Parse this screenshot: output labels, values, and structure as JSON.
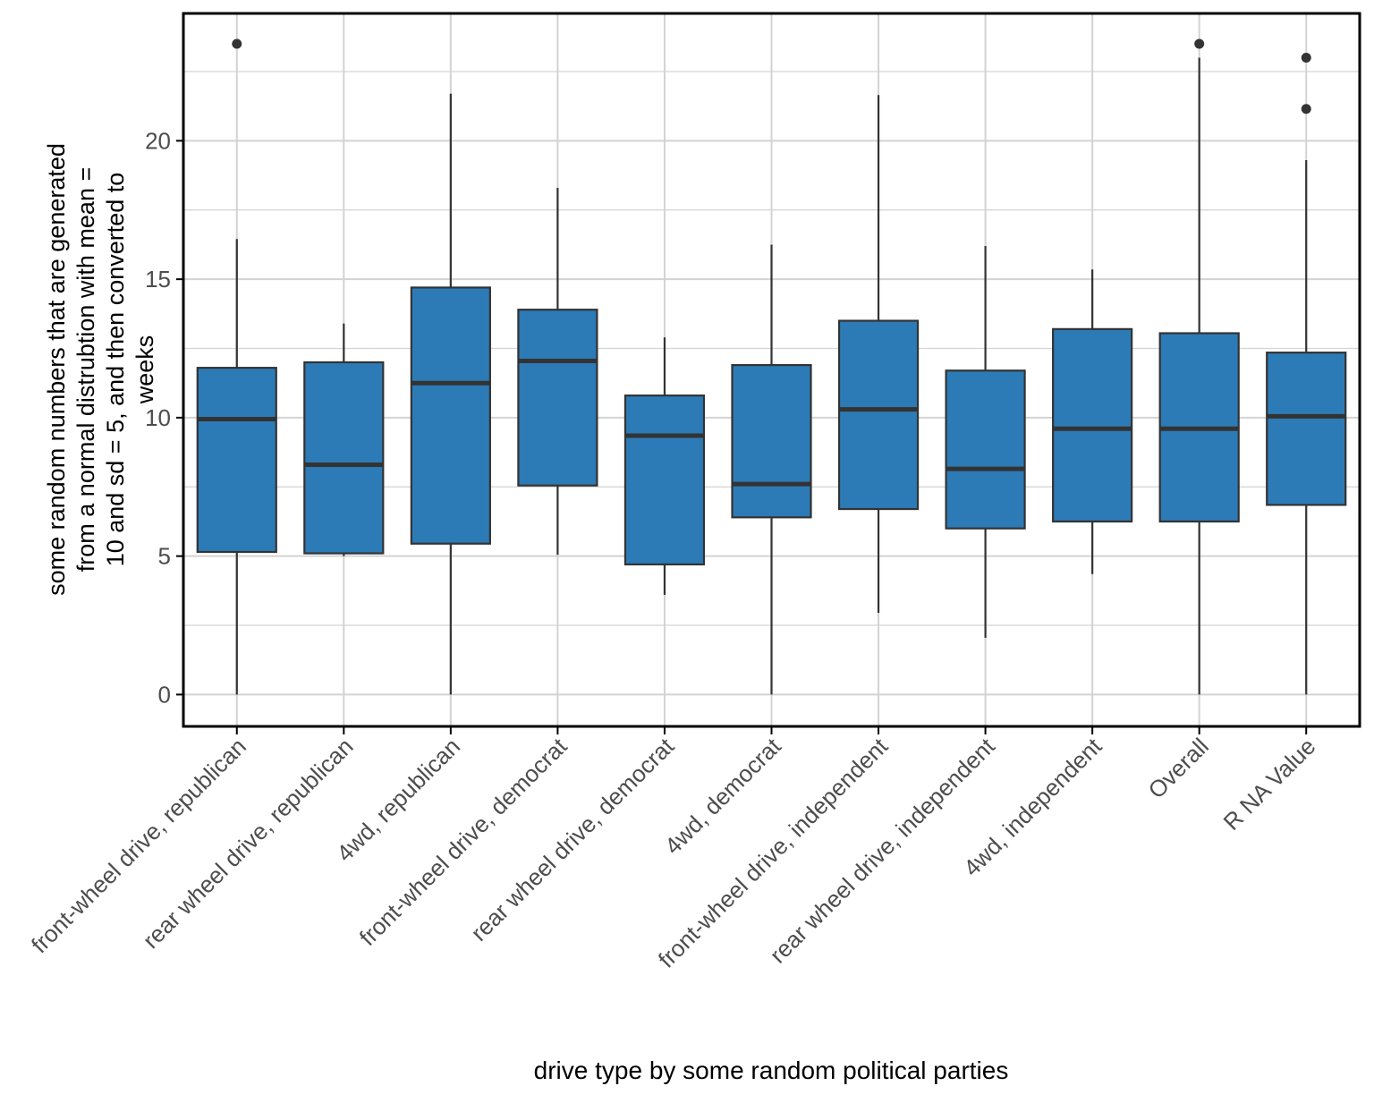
{
  "chart_data": {
    "type": "box",
    "title": "",
    "xlabel": "drive type by some random political parties",
    "ylabel_lines": [
      "some random numbers that are generated",
      "from a normal distrubtion with mean =",
      "10 and sd = 5, and then converted to",
      "weeks"
    ],
    "ylim": [
      -1.15,
      24.6
    ],
    "yticks": [
      0,
      5,
      10,
      15,
      20
    ],
    "ytick_labels": [
      "0",
      "5",
      "10",
      "15",
      "20"
    ],
    "y_minor_gridlines": [
      2.5,
      7.5,
      12.5,
      17.5,
      22.5
    ],
    "grid": true,
    "colors": {
      "box_fill": "#2C7BB6",
      "box_line": "#333333",
      "grid": "#d3d3d3",
      "axis": "#000000",
      "tick_text": "#4d4d4d",
      "label_text": "#000000"
    },
    "categories": [
      "front-wheel drive, republican",
      "rear wheel drive, republican",
      "4wd, republican",
      "front-wheel drive, democrat",
      "rear wheel drive, democrat",
      "4wd, democrat",
      "front-wheel drive, independent",
      "rear wheel drive, independent",
      "4wd, independent",
      "Overall",
      "R NA Value"
    ],
    "boxes": [
      {
        "min": 0.0,
        "q1": 5.15,
        "median": 9.95,
        "q3": 11.8,
        "max": 16.45,
        "outliers": [
          23.5
        ]
      },
      {
        "min": 5.0,
        "q1": 5.1,
        "median": 8.3,
        "q3": 12.0,
        "max": 13.4,
        "outliers": []
      },
      {
        "min": 0.0,
        "q1": 5.45,
        "median": 11.25,
        "q3": 14.7,
        "max": 21.7,
        "outliers": []
      },
      {
        "min": 5.05,
        "q1": 7.55,
        "median": 12.05,
        "q3": 13.9,
        "max": 18.3,
        "outliers": []
      },
      {
        "min": 3.6,
        "q1": 4.7,
        "median": 9.35,
        "q3": 10.8,
        "max": 12.9,
        "outliers": []
      },
      {
        "min": 0.0,
        "q1": 6.4,
        "median": 7.6,
        "q3": 11.9,
        "max": 16.25,
        "outliers": []
      },
      {
        "min": 2.95,
        "q1": 6.7,
        "median": 10.3,
        "q3": 13.5,
        "max": 21.65,
        "outliers": []
      },
      {
        "min": 2.05,
        "q1": 6.0,
        "median": 8.15,
        "q3": 11.7,
        "max": 16.2,
        "outliers": []
      },
      {
        "min": 4.35,
        "q1": 6.25,
        "median": 9.6,
        "q3": 13.2,
        "max": 15.35,
        "outliers": []
      },
      {
        "min": 0.0,
        "q1": 6.25,
        "median": 9.6,
        "q3": 13.05,
        "max": 23.0,
        "outliers": [
          23.5
        ]
      },
      {
        "min": 0.0,
        "q1": 6.85,
        "median": 10.05,
        "q3": 12.35,
        "max": 19.3,
        "outliers": [
          21.15,
          23.0
        ]
      }
    ]
  }
}
